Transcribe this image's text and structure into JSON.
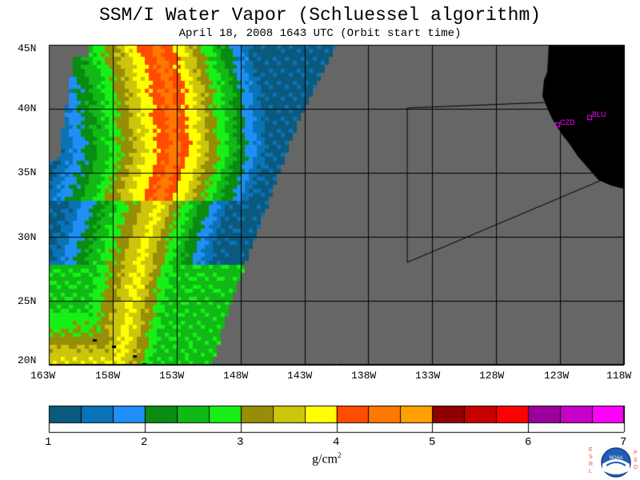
{
  "title": "SSM/I Water Vapor (Schluessel algorithm)",
  "subtitle": "April 18, 2008  1643 UTC  (Orbit start time)",
  "lat_labels": [
    "45N",
    "40N",
    "35N",
    "30N",
    "25N",
    "20N"
  ],
  "lon_labels": [
    "163W",
    "158W",
    "153W",
    "148W",
    "143W",
    "138W",
    "133W",
    "128W",
    "123W",
    "118W"
  ],
  "colorbar": {
    "labels": [
      "1",
      "2",
      "3",
      "4",
      "5",
      "6",
      "7"
    ],
    "units_base": "g/cm",
    "units_exp": "2",
    "colors": [
      "#0b5a7e",
      "#0a73b8",
      "#1f8ff5",
      "#0a8c12",
      "#11b816",
      "#17f017",
      "#978e07",
      "#cdc50b",
      "#ffff00",
      "#ff4c00",
      "#ff7800",
      "#ffa000",
      "#900000",
      "#c80000",
      "#ff0000",
      "#9b009b",
      "#c800c8",
      "#ff00ff"
    ]
  },
  "stations": [
    {
      "name": "CZD"
    },
    {
      "name": "BLU"
    }
  ],
  "logo": {
    "text": "NOAA",
    "left": "E S R L",
    "right": "P S D"
  },
  "colors": {
    "missing": "#666666",
    "land": "#000000"
  }
}
